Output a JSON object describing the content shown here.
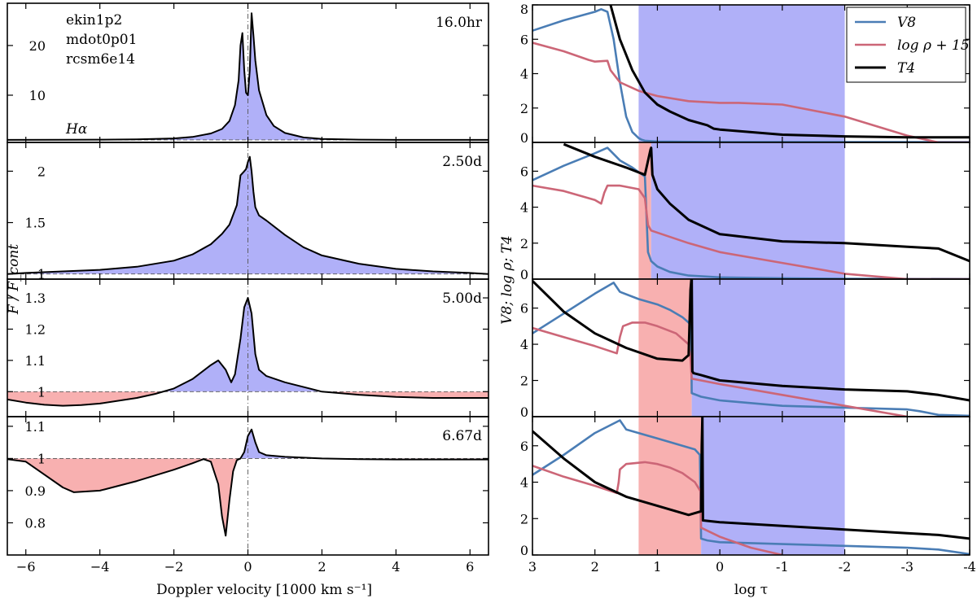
{
  "chart_data": {
    "type": "line",
    "left": {
      "xlabel": "Doppler velocity [1000 km s⁻¹]",
      "ylabel": "F / F_cont",
      "xlim": [
        -6.5,
        6.5
      ],
      "xticks": [
        -6,
        -4,
        -2,
        0,
        2,
        4,
        6
      ],
      "fill_colors": {
        "emission": "#b0b0f8",
        "absorption": "#f8b0b0"
      },
      "panels": [
        {
          "annotations": [
            "ekin1p2",
            "mdot0p01",
            "rcsm6e14"
          ],
          "line": "Hα",
          "time": "16.0hr",
          "ylim": [
            0.5,
            28.5
          ],
          "yticks": [
            10,
            20
          ],
          "x": [
            -6.5,
            -5,
            -4,
            -3,
            -2,
            -1.5,
            -1,
            -0.7,
            -0.5,
            -0.35,
            -0.25,
            -0.2,
            -0.15,
            -0.1,
            -0.05,
            0,
            0.05,
            0.1,
            0.15,
            0.2,
            0.3,
            0.5,
            0.7,
            1,
            1.5,
            2,
            3,
            4,
            5,
            6.5
          ],
          "y": [
            1.0,
            1.02,
            1.05,
            1.1,
            1.3,
            1.6,
            2.3,
            3.2,
            4.8,
            8.0,
            13.0,
            20.0,
            22.5,
            15.0,
            10.5,
            10.0,
            15.0,
            26.5,
            22.0,
            17.0,
            11.0,
            6.0,
            3.8,
            2.4,
            1.5,
            1.2,
            1.05,
            1.0,
            1.0,
            1.0
          ]
        },
        {
          "time": "2.50d",
          "ylim": [
            0.95,
            2.28
          ],
          "yticks": [
            1.0,
            1.5,
            2.0
          ],
          "x": [
            -6.5,
            -6,
            -5,
            -4,
            -3,
            -2,
            -1.5,
            -1,
            -0.7,
            -0.5,
            -0.3,
            -0.2,
            -0.1,
            -0.05,
            0,
            0.05,
            0.1,
            0.15,
            0.2,
            0.3,
            0.5,
            1,
            1.5,
            2,
            3,
            4,
            5,
            6,
            6.5
          ],
          "y": [
            1.0,
            1.01,
            1.025,
            1.04,
            1.07,
            1.13,
            1.19,
            1.29,
            1.39,
            1.48,
            1.67,
            1.96,
            2.0,
            2.02,
            2.09,
            2.14,
            2.0,
            1.8,
            1.65,
            1.57,
            1.52,
            1.38,
            1.26,
            1.18,
            1.1,
            1.05,
            1.025,
            1.01,
            1.0
          ]
        },
        {
          "time": "5.00d",
          "ylim": [
            0.92,
            1.36
          ],
          "yticks": [
            1.0,
            1.1,
            1.2,
            1.3
          ],
          "x": [
            -6.5,
            -6,
            -5.5,
            -5,
            -4.5,
            -4,
            -3,
            -2.5,
            -2,
            -1.5,
            -1,
            -0.8,
            -0.6,
            -0.45,
            -0.35,
            -0.2,
            -0.1,
            0,
            0.1,
            0.2,
            0.3,
            0.5,
            1,
            2,
            3,
            4,
            5,
            6,
            6.5
          ],
          "y": [
            0.975,
            0.965,
            0.958,
            0.955,
            0.957,
            0.962,
            0.98,
            0.993,
            1.01,
            1.04,
            1.085,
            1.1,
            1.07,
            1.03,
            1.055,
            1.17,
            1.27,
            1.3,
            1.25,
            1.12,
            1.07,
            1.05,
            1.03,
            1.0,
            0.99,
            0.983,
            0.98,
            0.98,
            0.98
          ]
        },
        {
          "time": "6.67d",
          "ylim": [
            0.7,
            1.13
          ],
          "yticks": [
            0.8,
            0.9,
            1.0,
            1.1
          ],
          "x": [
            -6.5,
            -6,
            -5.5,
            -5,
            -4.7,
            -4,
            -3,
            -2,
            -1.5,
            -1.2,
            -1,
            -0.8,
            -0.7,
            -0.6,
            -0.5,
            -0.4,
            -0.3,
            -0.2,
            -0.1,
            0,
            0.1,
            0.2,
            0.3,
            0.5,
            1,
            2,
            3,
            4,
            5,
            6,
            6.5
          ],
          "y": [
            0.998,
            0.99,
            0.95,
            0.91,
            0.895,
            0.9,
            0.93,
            0.965,
            0.985,
            0.998,
            0.99,
            0.92,
            0.82,
            0.76,
            0.87,
            0.96,
            0.995,
            1.0,
            1.02,
            1.07,
            1.09,
            1.05,
            1.02,
            1.01,
            1.005,
            1.0,
            0.998,
            0.997,
            0.997,
            0.997,
            0.997
          ]
        }
      ]
    },
    "right": {
      "xlabel": "log τ",
      "ylabel": "V8; log ρ; T4",
      "xlim": [
        3,
        -4
      ],
      "xticks": [
        3,
        2,
        1,
        0,
        -1,
        -2,
        -3,
        -4
      ],
      "xticklabels": [
        "3",
        "2",
        "1",
        "0",
        "-1",
        "-2",
        "-3",
        "-4"
      ],
      "legend": {
        "location": "top-right",
        "entries": [
          {
            "name": "V8",
            "color": "#4a7db5"
          },
          {
            "name": "log ρ + 15",
            "color": "#cc6677"
          },
          {
            "name": "T4",
            "color": "#000000"
          }
        ]
      },
      "band_colors": {
        "blue": "#b0b0f8",
        "red": "#f8b0b0"
      },
      "panels": [
        {
          "ylim": [
            0,
            8
          ],
          "yticks": [
            0,
            2,
            4,
            6,
            8
          ],
          "bands": [
            {
              "from": 1.3,
              "to": -2,
              "color": "blue"
            }
          ],
          "series": [
            {
              "name": "V8",
              "x": [
                3,
                2.5,
                2,
                1.9,
                1.8,
                1.7,
                1.6,
                1.5,
                1.4,
                1.3,
                1.25,
                1.2,
                1.0,
                0,
                -2,
                -4
              ],
              "y": [
                6.5,
                7.1,
                7.6,
                7.75,
                7.6,
                6.0,
                3.5,
                1.5,
                0.6,
                0.25,
                0.15,
                0.1,
                0.05,
                0.02,
                0.02,
                0.02
              ]
            },
            {
              "name": "log ρ + 15",
              "x": [
                3,
                2.5,
                2.1,
                2.0,
                1.8,
                1.75,
                1.6,
                1.3,
                1.0,
                0.5,
                0,
                -0.3,
                -1,
                -2,
                -3,
                -3.5,
                -4
              ],
              "y": [
                5.8,
                5.3,
                4.8,
                4.7,
                4.75,
                4.2,
                3.5,
                3.0,
                2.7,
                2.4,
                2.3,
                2.3,
                2.2,
                1.5,
                0.4,
                0.0,
                0.0
              ]
            },
            {
              "name": "T4",
              "x": [
                1.75,
                1.6,
                1.4,
                1.2,
                1.0,
                0.8,
                0.5,
                0.2,
                0.1,
                0,
                -1,
                -2,
                -3,
                -4
              ],
              "y": [
                8.0,
                6.0,
                4.2,
                2.9,
                2.2,
                1.8,
                1.3,
                1.0,
                0.8,
                0.75,
                0.45,
                0.35,
                0.3,
                0.3
              ]
            }
          ]
        },
        {
          "ylim": [
            0,
            7.6
          ],
          "yticks": [
            0,
            2,
            4,
            6
          ],
          "bands": [
            {
              "from": 1.3,
              "to": 1.1,
              "color": "red"
            },
            {
              "from": 1.1,
              "to": -2,
              "color": "blue"
            }
          ],
          "series": [
            {
              "name": "V8",
              "x": [
                3,
                2.5,
                2,
                1.8,
                1.6,
                1.4,
                1.2,
                1.15,
                1.1,
                1.0,
                0.8,
                0.5,
                0,
                -1,
                -2,
                -4
              ],
              "y": [
                5.5,
                6.3,
                7.0,
                7.3,
                6.6,
                6.2,
                5.7,
                1.5,
                1.0,
                0.7,
                0.4,
                0.2,
                0.1,
                0.05,
                0.02,
                0.01
              ]
            },
            {
              "name": "log ρ + 15",
              "x": [
                3,
                2.5,
                2.0,
                1.9,
                1.85,
                1.8,
                1.6,
                1.3,
                1.2,
                1.15,
                1.1,
                0.5,
                0,
                -1,
                -2,
                -3,
                -4
              ],
              "y": [
                5.2,
                4.9,
                4.4,
                4.2,
                4.8,
                5.2,
                5.2,
                5.0,
                4.5,
                3.0,
                2.7,
                2.0,
                1.5,
                0.9,
                0.3,
                0.0,
                0.0
              ]
            },
            {
              "name": "T4",
              "x": [
                2.5,
                2.0,
                1.5,
                1.2,
                1.11,
                1.1,
                1.08,
                1.0,
                0.8,
                0.5,
                0,
                -1,
                -2,
                -3,
                -3.5,
                -4
              ],
              "y": [
                7.5,
                6.8,
                6.2,
                5.8,
                7.2,
                7.3,
                5.8,
                5.0,
                4.2,
                3.3,
                2.5,
                2.1,
                2.0,
                1.8,
                1.7,
                1.0
              ]
            }
          ]
        },
        {
          "ylim": [
            0,
            7.6
          ],
          "yticks": [
            0,
            2,
            4,
            6
          ],
          "bands": [
            {
              "from": 1.3,
              "to": 0.45,
              "color": "red"
            },
            {
              "from": 0.45,
              "to": -2,
              "color": "blue"
            }
          ],
          "series": [
            {
              "name": "V8",
              "x": [
                3,
                2.5,
                2,
                1.7,
                1.6,
                1.3,
                1.0,
                0.8,
                0.6,
                0.5,
                0.46,
                0.45,
                0.3,
                0,
                -1,
                -2,
                -3,
                -3.2,
                -3.5,
                -4
              ],
              "y": [
                4.6,
                5.7,
                6.8,
                7.4,
                6.9,
                6.5,
                6.2,
                5.9,
                5.5,
                5.2,
                5.0,
                1.3,
                1.1,
                0.9,
                0.6,
                0.5,
                0.4,
                0.3,
                0.1,
                0.05
              ]
            },
            {
              "name": "log ρ + 15",
              "x": [
                3,
                2.5,
                2.0,
                1.65,
                1.6,
                1.55,
                1.4,
                1.2,
                1.0,
                0.7,
                0.5,
                0.47,
                0.45,
                0.3,
                0,
                -1,
                -2,
                -3
              ],
              "y": [
                4.9,
                4.4,
                3.9,
                3.5,
                4.4,
                5.0,
                5.2,
                5.2,
                5.0,
                4.6,
                4.0,
                3.2,
                2.1,
                2.0,
                1.8,
                1.2,
                0.6,
                0.0
              ]
            },
            {
              "name": "T4",
              "x": [
                3,
                2.5,
                2.0,
                1.5,
                1.0,
                0.6,
                0.5,
                0.47,
                0.45,
                0.44,
                0.42,
                0.3,
                0,
                -1,
                -2,
                -3,
                -3.5,
                -4
              ],
              "y": [
                7.5,
                5.8,
                4.6,
                3.8,
                3.2,
                3.1,
                3.4,
                7.0,
                7.8,
                2.5,
                2.4,
                2.3,
                2.0,
                1.7,
                1.5,
                1.4,
                1.2,
                0.9
              ]
            }
          ]
        },
        {
          "ylim": [
            0,
            7.6
          ],
          "yticks": [
            0,
            2,
            4,
            6
          ],
          "bands": [
            {
              "from": 1.3,
              "to": 0.3,
              "color": "red"
            },
            {
              "from": 0.3,
              "to": -2,
              "color": "blue"
            }
          ],
          "series": [
            {
              "name": "V8",
              "x": [
                3,
                2.5,
                2.0,
                1.6,
                1.5,
                1.2,
                1.0,
                0.8,
                0.6,
                0.4,
                0.32,
                0.3,
                0.2,
                0,
                -1,
                -2,
                -3,
                -3.5,
                -4
              ],
              "y": [
                4.4,
                5.5,
                6.7,
                7.4,
                6.9,
                6.6,
                6.4,
                6.2,
                6.0,
                5.8,
                5.5,
                0.9,
                0.8,
                0.7,
                0.6,
                0.5,
                0.4,
                0.3,
                0.05
              ]
            },
            {
              "name": "log ρ + 15",
              "x": [
                3,
                2.5,
                2.0,
                1.65,
                1.62,
                1.6,
                1.5,
                1.2,
                1.0,
                0.8,
                0.6,
                0.4,
                0.31,
                0.3,
                0,
                -0.5,
                -1
              ],
              "y": [
                4.9,
                4.3,
                3.8,
                3.4,
                4.0,
                4.7,
                5.0,
                5.1,
                5.0,
                4.8,
                4.5,
                4.0,
                3.5,
                1.5,
                1.0,
                0.4,
                0.0
              ]
            },
            {
              "name": "T4",
              "x": [
                3,
                2.5,
                2.0,
                1.5,
                1.0,
                0.5,
                0.3,
                0.29,
                0.28,
                0.27,
                0,
                -1,
                -2,
                -3,
                -3.5,
                -4
              ],
              "y": [
                6.8,
                5.3,
                4.0,
                3.2,
                2.7,
                2.2,
                2.4,
                6.0,
                7.6,
                1.9,
                1.8,
                1.6,
                1.4,
                1.2,
                1.1,
                0.9
              ]
            }
          ]
        }
      ]
    }
  }
}
